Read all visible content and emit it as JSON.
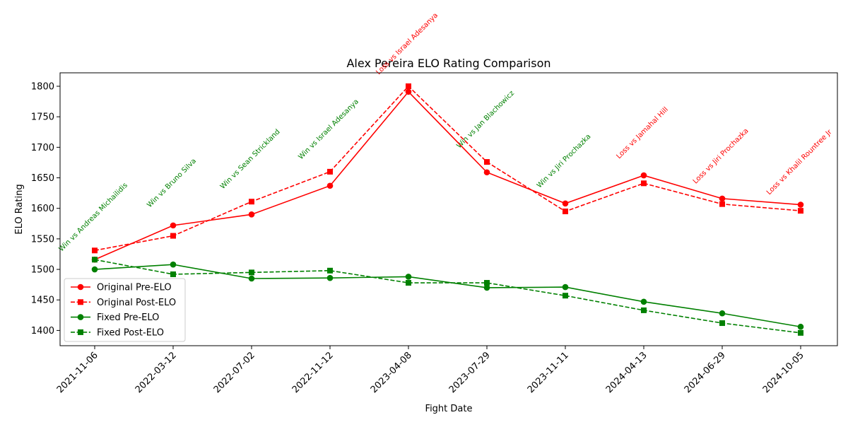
{
  "chart_data": {
    "type": "line",
    "title": "Alex Pereira ELO Rating Comparison",
    "xlabel": "Fight Date",
    "ylabel": "ELO Rating",
    "categories": [
      "2021-11-06",
      "2022-03-12",
      "2022-07-02",
      "2022-11-12",
      "2023-04-08",
      "2023-07-29",
      "2023-11-11",
      "2024-04-13",
      "2024-06-29",
      "2024-10-05"
    ],
    "ylim": [
      1375,
      1822
    ],
    "yticks": [
      1400,
      1450,
      1500,
      1550,
      1600,
      1650,
      1700,
      1750,
      1800
    ],
    "grid": false,
    "legend_position": "lower-left",
    "series": [
      {
        "name": "Original Pre-ELO",
        "color": "#ff0000",
        "style": "solid",
        "marker": "circle",
        "values": [
          1516,
          1572,
          1590,
          1637,
          1791,
          1659,
          1608,
          1654,
          1616,
          1606
        ]
      },
      {
        "name": "Original Post-ELO",
        "color": "#ff0000",
        "style": "dashed",
        "marker": "square",
        "values": [
          1531,
          1555,
          1611,
          1660,
          1800,
          1676,
          1595,
          1641,
          1607,
          1596
        ]
      },
      {
        "name": "Fixed Pre-ELO",
        "color": "#008000",
        "style": "solid",
        "marker": "circle",
        "values": [
          1500,
          1508,
          1485,
          1486,
          1488,
          1470,
          1471,
          1447,
          1428,
          1406
        ]
      },
      {
        "name": "Fixed Post-ELO",
        "color": "#008000",
        "style": "dashed",
        "marker": "square",
        "values": [
          1516,
          1492,
          1495,
          1498,
          1478,
          1478,
          1457,
          1433,
          1412,
          1396
        ]
      }
    ],
    "annotations": [
      {
        "text": "Win vs Andreas Michailidis",
        "color": "#008000",
        "at": 1516
      },
      {
        "text": "Win vs Bruno Silva",
        "color": "#008000",
        "at": 1572
      },
      {
        "text": "Win vs Sean Strickland",
        "color": "#008000",
        "at": 1611
      },
      {
        "text": "Win vs Israel Adesanya",
        "color": "#008000",
        "at": 1660
      },
      {
        "text": "Loss vs Israel Adesanya",
        "color": "#ff0000",
        "at": 1800
      },
      {
        "text": "Win vs Jan Blachowicz",
        "color": "#008000",
        "at": 1676
      },
      {
        "text": "Win vs Jiri Prochazka",
        "color": "#008000",
        "at": 1608
      },
      {
        "text": "Loss vs Jamahal Hill",
        "color": "#ff0000",
        "at": 1654
      },
      {
        "text": "Loss vs Jiri Prochazka",
        "color": "#ff0000",
        "at": 1616
      },
      {
        "text": "Loss vs Khalil Rountree Jr",
        "color": "#ff0000",
        "at": 1606
      }
    ]
  }
}
